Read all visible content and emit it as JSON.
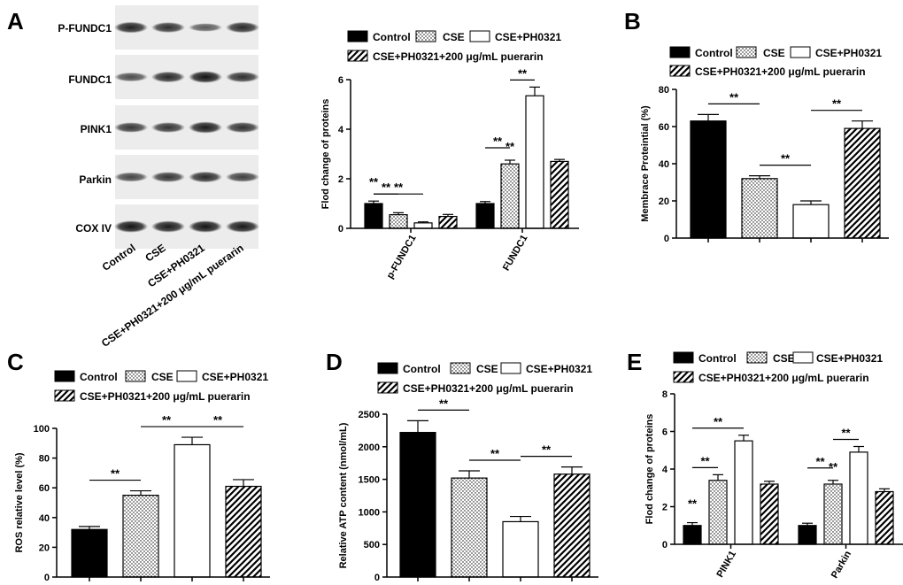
{
  "figure": {
    "panel_letters": [
      "A",
      "B",
      "C",
      "D",
      "E"
    ],
    "significance_mark": "**",
    "legend_labels": [
      "Control",
      "CSE",
      "CSE+PH0321",
      "CSE+PH0321+200 μg/mL  puerarin"
    ],
    "series_fills": [
      "solid-black",
      "dotted",
      "white",
      "diagonal-hatch"
    ],
    "bar_color": "#000000",
    "background": "#ffffff"
  },
  "blot": {
    "rows": [
      "P-FUNDC1",
      "FUNDC1",
      "PINK1",
      "Parkin",
      "COX IV"
    ],
    "lanes": [
      "Control",
      "CSE",
      "CSE+PH0321",
      "CSE+PH0321+200 μg/mL puerarin"
    ],
    "band_intensity": [
      [
        0.85,
        0.75,
        0.45,
        0.8
      ],
      [
        0.55,
        0.8,
        0.95,
        0.75
      ],
      [
        0.7,
        0.72,
        0.9,
        0.75
      ],
      [
        0.6,
        0.72,
        0.8,
        0.65
      ],
      [
        0.95,
        0.9,
        0.95,
        0.92
      ]
    ]
  },
  "chart_data": [
    {
      "panel": "A",
      "type": "bar",
      "ylabel": "Flod change of  proteins",
      "xlabel": "",
      "categories": [
        "p-FUNDC1",
        "FUNDC1"
      ],
      "ylim": [
        0,
        6
      ],
      "yticks": [
        0,
        2,
        4,
        6
      ],
      "series": [
        {
          "name": "Control",
          "values": [
            1.0,
            1.0
          ],
          "errors": [
            0.1,
            0.08
          ]
        },
        {
          "name": "CSE",
          "values": [
            0.55,
            2.6
          ],
          "errors": [
            0.08,
            0.15
          ]
        },
        {
          "name": "CSE+PH0321",
          "values": [
            0.22,
            5.35
          ],
          "errors": [
            0.04,
            0.35
          ]
        },
        {
          "name": "CSE+PH0321+200 μg/mL puerarin",
          "values": [
            0.48,
            2.7
          ],
          "errors": [
            0.08,
            0.08
          ]
        }
      ]
    },
    {
      "panel": "B",
      "type": "bar",
      "ylabel": "Membrace Proteintial  (%)",
      "xlabel": "",
      "categories": [
        "Control",
        "CSE",
        "CSE+PH0321",
        "CSE+PH0321+200 μg/mL  puerarin"
      ],
      "ylim": [
        0,
        80
      ],
      "yticks": [
        0,
        20,
        40,
        60,
        80
      ],
      "values": [
        63,
        32,
        18,
        59
      ],
      "errors": [
        3.5,
        1.5,
        2,
        4
      ]
    },
    {
      "panel": "C",
      "type": "bar",
      "ylabel": "ROS relative level  (%)",
      "xlabel": "",
      "categories": [
        "Control",
        "CSE",
        "CSE+PH0321",
        "CSE+PH0321+200 μg/mL  puerarin"
      ],
      "ylim": [
        0,
        100
      ],
      "yticks": [
        0,
        20,
        40,
        60,
        80,
        100
      ],
      "values": [
        32,
        55,
        89,
        61
      ],
      "errors": [
        2,
        3,
        5,
        4.5
      ]
    },
    {
      "panel": "D",
      "type": "bar",
      "ylabel": "Relative ATP content (nmol/mL)",
      "xlabel": "",
      "categories": [
        "Control",
        "CSE",
        "CSE+PH0321",
        "CSE+PH0321+200 μg/mL  puerarin"
      ],
      "ylim": [
        0,
        2500
      ],
      "yticks": [
        0,
        500,
        1000,
        1500,
        2000,
        2500
      ],
      "values": [
        2220,
        1520,
        850,
        1580
      ],
      "errors": [
        180,
        110,
        80,
        110
      ]
    },
    {
      "panel": "E",
      "type": "bar",
      "ylabel": "Flod change of  proteins",
      "xlabel": "",
      "categories": [
        "PINK1",
        "Parkin"
      ],
      "ylim": [
        0,
        8
      ],
      "yticks": [
        0,
        2,
        4,
        6,
        8
      ],
      "series": [
        {
          "name": "Control",
          "values": [
            1.0,
            1.0
          ],
          "errors": [
            0.15,
            0.12
          ]
        },
        {
          "name": "CSE",
          "values": [
            3.4,
            3.2
          ],
          "errors": [
            0.3,
            0.2
          ]
        },
        {
          "name": "CSE+PH0321",
          "values": [
            5.5,
            4.9
          ],
          "errors": [
            0.3,
            0.3
          ]
        },
        {
          "name": "CSE+PH0321+200 μg/mL puerarin",
          "values": [
            3.2,
            2.8
          ],
          "errors": [
            0.15,
            0.15
          ]
        }
      ]
    }
  ]
}
